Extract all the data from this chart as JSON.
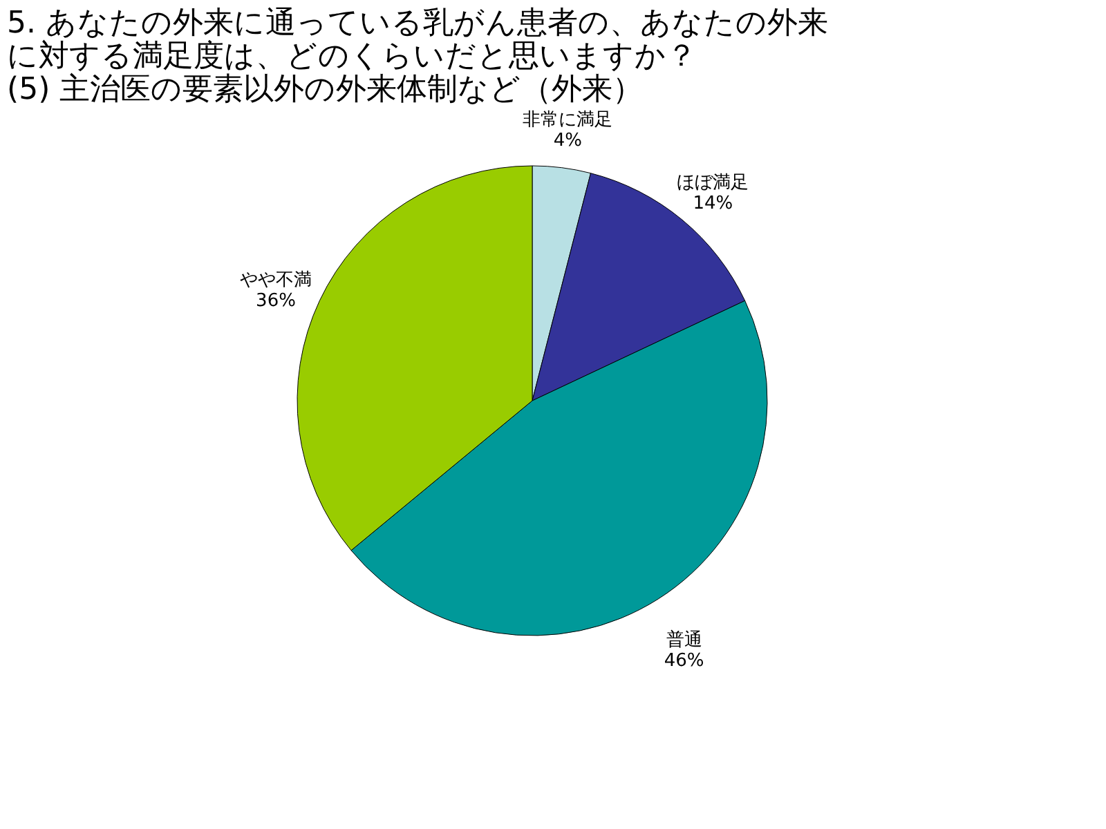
{
  "chart_data": {
    "type": "pie",
    "title": [
      "5. あなたの外来に通っている乳がん患者の、あなたの外来",
      "に対する満足度は、どのくらいだと思いますか？",
      "(5) 主治医の要素以外の外来体制など（外来）"
    ],
    "categories": [
      "非常に満足",
      "ほぼ満足",
      "普通",
      "やや不満"
    ],
    "values": [
      4,
      14,
      46,
      36
    ],
    "value_labels": [
      "4%",
      "14%",
      "46%",
      "36%"
    ],
    "colors": [
      "#b8e0e4",
      "#333399",
      "#009999",
      "#99cc00"
    ],
    "legend": false
  }
}
